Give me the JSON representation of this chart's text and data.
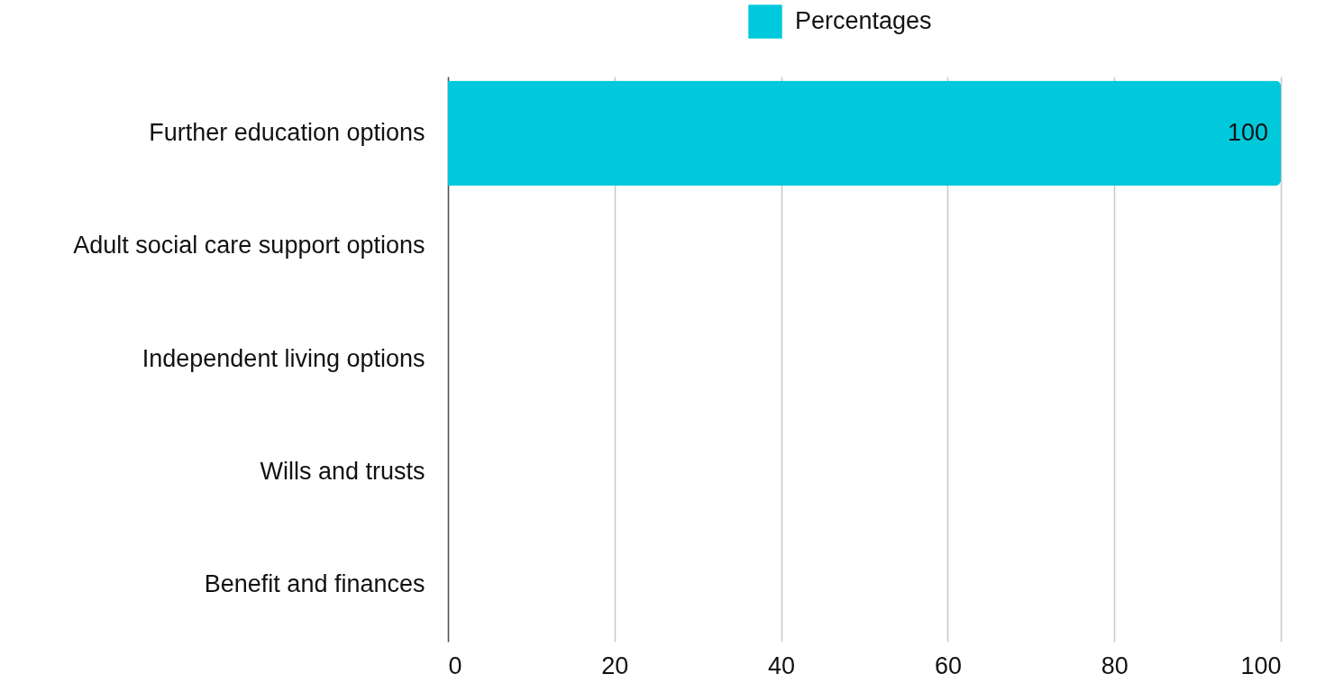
{
  "chart_data": {
    "type": "bar",
    "orientation": "horizontal",
    "categories": [
      "Further education options",
      "Adult social care support options",
      "Independent living options",
      "Wills and trusts",
      "Benefit and finances"
    ],
    "series": [
      {
        "name": "Percentages",
        "color": "#00c9db",
        "values": [
          100,
          0,
          0,
          0,
          0
        ],
        "value_labels": [
          "100",
          null,
          null,
          null,
          null
        ]
      }
    ],
    "xlim": [
      0,
      100
    ],
    "xticks": [
      0,
      20,
      40,
      60,
      80,
      100
    ],
    "grid": "x",
    "legend": "top"
  }
}
